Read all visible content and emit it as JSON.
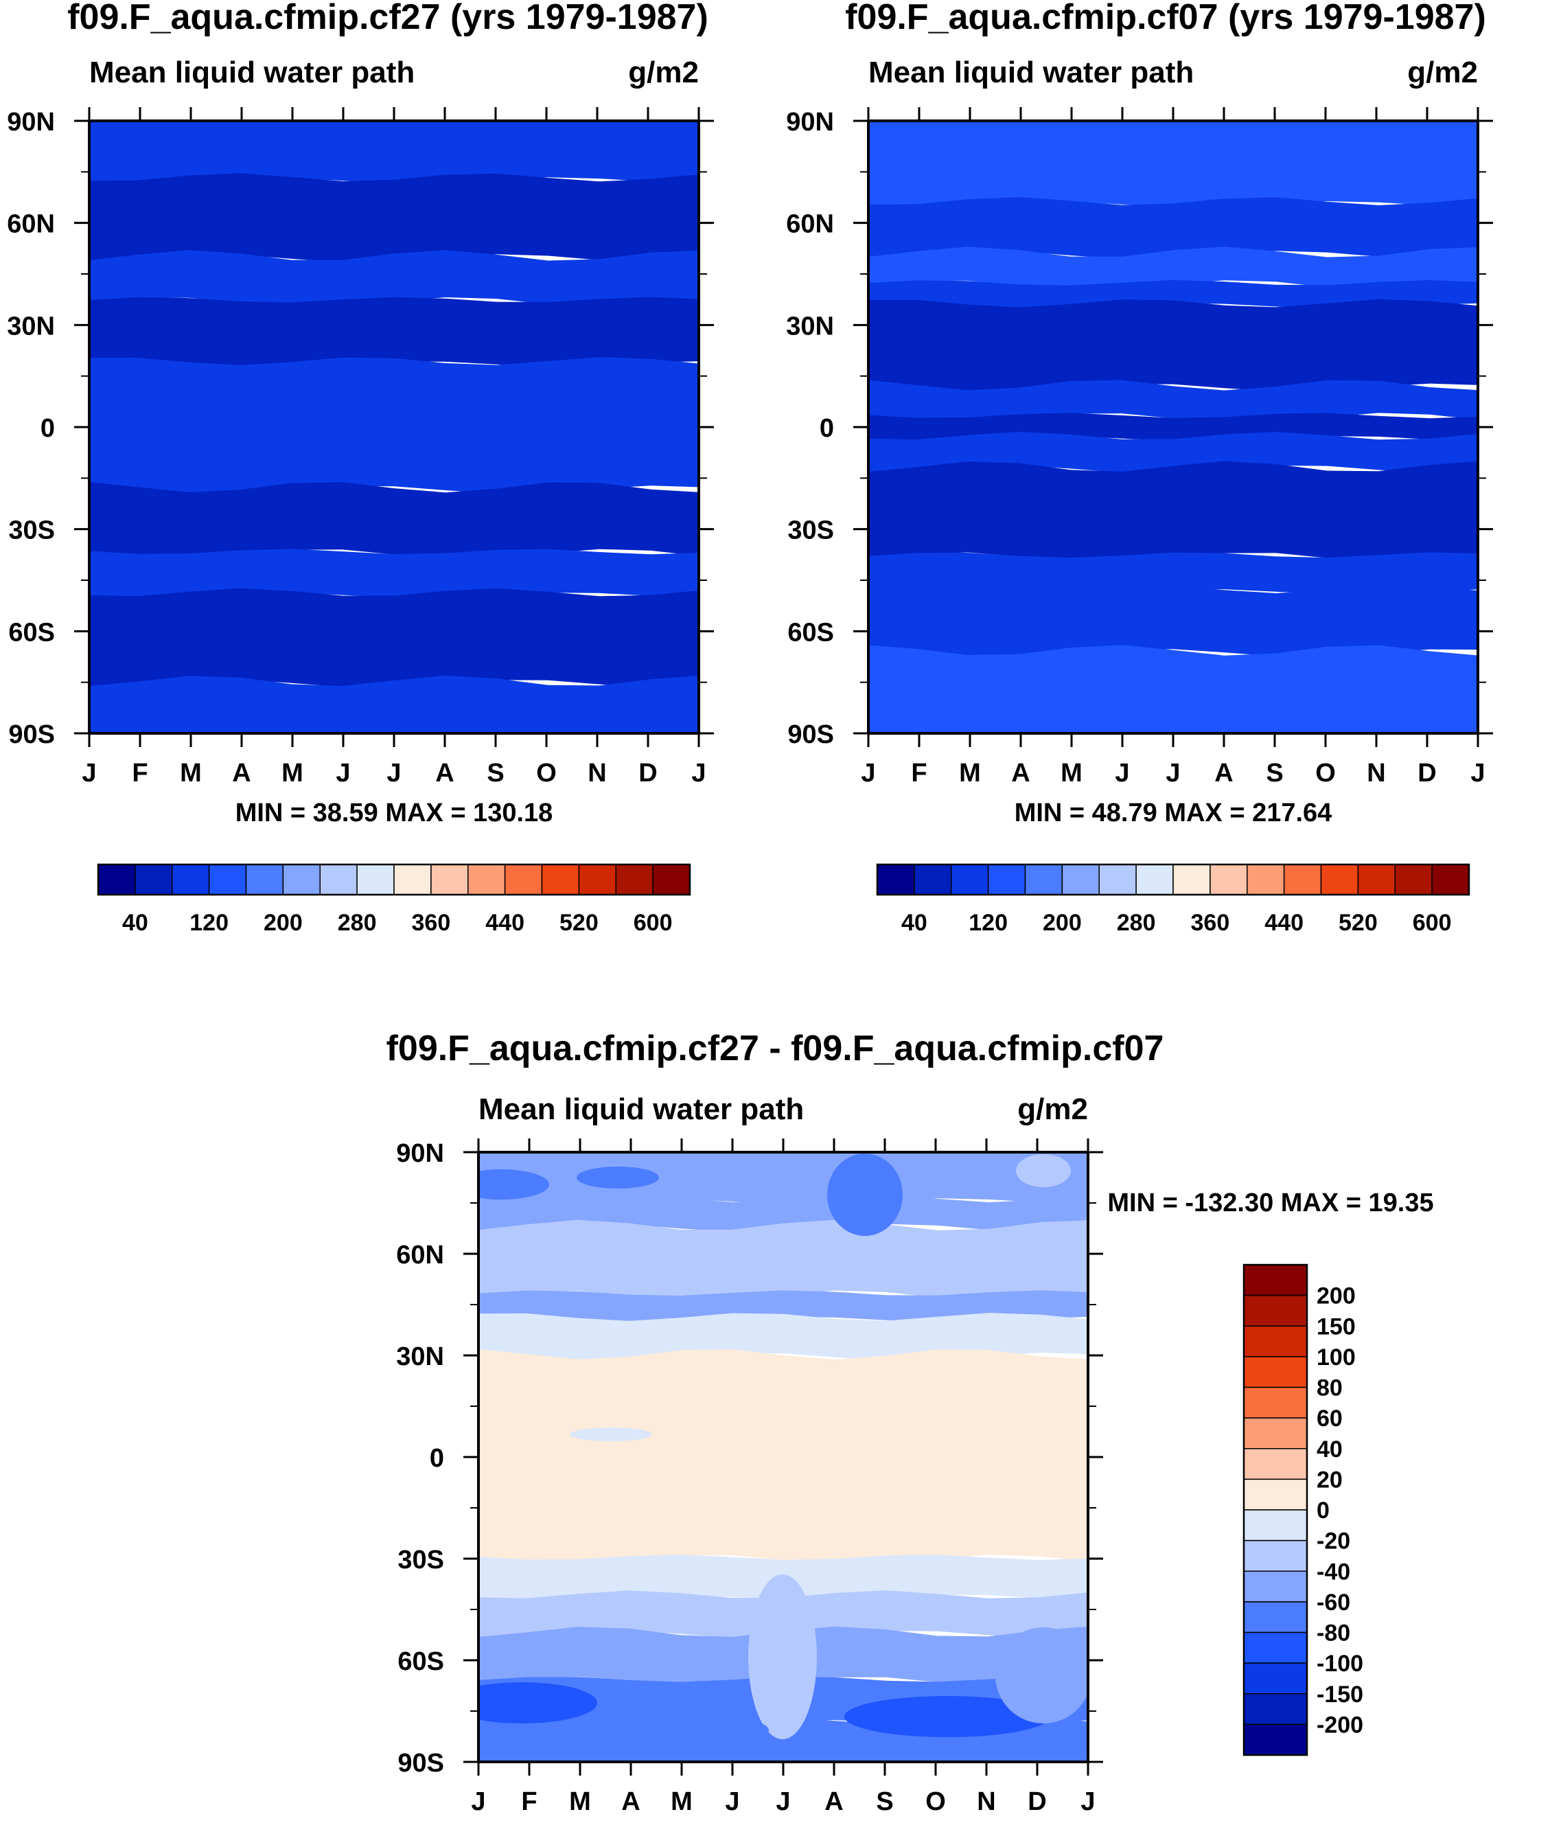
{
  "chart_data": [
    {
      "type": "heatmap",
      "title": "f09.F_aqua.cfmip.cf27 (yrs 1979-1987)",
      "subtitle_left": "Mean liquid water path",
      "subtitle_right": "g/m2",
      "x_tick_labels": [
        "J",
        "F",
        "M",
        "A",
        "M",
        "J",
        "J",
        "A",
        "S",
        "O",
        "N",
        "D",
        "J"
      ],
      "y_tick_labels": [
        "90N",
        "60N",
        "30N",
        "0",
        "30S",
        "60S",
        "90S"
      ],
      "y_values": [
        90,
        60,
        30,
        0,
        -30,
        -60,
        -90
      ],
      "ylim": [
        -90,
        90
      ],
      "stats_text": "MIN =  38.59 MAX = 130.18",
      "min": 38.59,
      "max": 130.18,
      "bands": [
        {
          "lat_from": 90,
          "lat_to": 73,
          "color": "#0a3be6"
        },
        {
          "lat_from": 73,
          "lat_to": 50,
          "color": "#0322c2"
        },
        {
          "lat_from": 50,
          "lat_to": 37,
          "color": "#0a3be6"
        },
        {
          "lat_from": 37,
          "lat_to": 19,
          "color": "#0322c2"
        },
        {
          "lat_from": 19,
          "lat_to": -18,
          "color": "#0a3be6"
        },
        {
          "lat_from": -18,
          "lat_to": -37,
          "color": "#0322c2"
        },
        {
          "lat_from": -37,
          "lat_to": -49,
          "color": "#0a3be6"
        },
        {
          "lat_from": -49,
          "lat_to": -75,
          "color": "#0322c2"
        },
        {
          "lat_from": -75,
          "lat_to": -90,
          "color": "#0a3be6"
        }
      ],
      "colorbar": {
        "labels": [
          "40",
          "120",
          "200",
          "280",
          "360",
          "440",
          "520",
          "600"
        ],
        "colors": [
          "#00008f",
          "#0020bb",
          "#0a3be6",
          "#1e55ff",
          "#4c7cff",
          "#85a6ff",
          "#b4caff",
          "#dbe8fb",
          "#fdebdb",
          "#fdc6ad",
          "#fb9e77",
          "#fa6f3e",
          "#ef4513",
          "#cf2802",
          "#a81400",
          "#870000"
        ]
      }
    },
    {
      "type": "heatmap",
      "title": "f09.F_aqua.cfmip.cf07 (yrs 1979-1987)",
      "subtitle_left": "Mean liquid water path",
      "subtitle_right": "g/m2",
      "x_tick_labels": [
        "J",
        "F",
        "M",
        "A",
        "M",
        "J",
        "J",
        "A",
        "S",
        "O",
        "N",
        "D",
        "J"
      ],
      "y_tick_labels": [
        "90N",
        "60N",
        "30N",
        "0",
        "30S",
        "60S",
        "90S"
      ],
      "y_values": [
        90,
        60,
        30,
        0,
        -30,
        -60,
        -90
      ],
      "ylim": [
        -90,
        90
      ],
      "stats_text": "MIN =  48.79 MAX = 217.64",
      "min": 48.79,
      "max": 217.64,
      "bands": [
        {
          "lat_from": 90,
          "lat_to": 66,
          "color": "#1e55ff"
        },
        {
          "lat_from": 66,
          "lat_to": 51,
          "color": "#0a3be6"
        },
        {
          "lat_from": 51,
          "lat_to": 42,
          "color": "#1e55ff"
        },
        {
          "lat_from": 42,
          "lat_to": 36,
          "color": "#0a3be6"
        },
        {
          "lat_from": 36,
          "lat_to": 12,
          "color": "#0322c2"
        },
        {
          "lat_from": 12,
          "lat_to": 3,
          "color": "#0a3be6"
        },
        {
          "lat_from": 3,
          "lat_to": -3,
          "color": "#0322c2"
        },
        {
          "lat_from": -3,
          "lat_to": -12,
          "color": "#0a3be6"
        },
        {
          "lat_from": -12,
          "lat_to": -38,
          "color": "#0322c2"
        },
        {
          "lat_from": -38,
          "lat_to": -48,
          "color": "#0a3be6"
        },
        {
          "lat_from": -48,
          "lat_to": -66,
          "color": "#0a3be6"
        },
        {
          "lat_from": -66,
          "lat_to": -90,
          "color": "#1e55ff"
        }
      ],
      "colorbar": {
        "labels": [
          "40",
          "120",
          "200",
          "280",
          "360",
          "440",
          "520",
          "600"
        ],
        "colors": [
          "#00008f",
          "#0020bb",
          "#0a3be6",
          "#1e55ff",
          "#4c7cff",
          "#85a6ff",
          "#b4caff",
          "#dbe8fb",
          "#fdebdb",
          "#fdc6ad",
          "#fb9e77",
          "#fa6f3e",
          "#ef4513",
          "#cf2802",
          "#a81400",
          "#870000"
        ]
      }
    },
    {
      "type": "heatmap",
      "title": "f09.F_aqua.cfmip.cf27 - f09.F_aqua.cfmip.cf07",
      "subtitle_left": "Mean liquid water path",
      "subtitle_right": "g/m2",
      "x_tick_labels": [
        "J",
        "F",
        "M",
        "A",
        "M",
        "J",
        "J",
        "A",
        "S",
        "O",
        "N",
        "D",
        "J"
      ],
      "y_tick_labels": [
        "90N",
        "60N",
        "30N",
        "0",
        "30S",
        "60S",
        "90S"
      ],
      "y_values": [
        90,
        60,
        30,
        0,
        -30,
        -60,
        -90
      ],
      "ylim": [
        -90,
        90
      ],
      "stats_text": "MIN = -132.30 MAX =  19.35",
      "min": -132.3,
      "max": 19.35,
      "bands": [
        {
          "lat_from": 90,
          "lat_to": 76,
          "color": "#85a6ff"
        },
        {
          "lat_from": 76,
          "lat_to": 68,
          "color": "#85a6ff"
        },
        {
          "lat_from": 68,
          "lat_to": 48,
          "color": "#b4caff"
        },
        {
          "lat_from": 48,
          "lat_to": 41,
          "color": "#85a6ff"
        },
        {
          "lat_from": 41,
          "lat_to": 30,
          "color": "#dbe8fb"
        },
        {
          "lat_from": 30,
          "lat_to": -30,
          "color": "#fdebdb"
        },
        {
          "lat_from": -30,
          "lat_to": -41,
          "color": "#dbe8fb"
        },
        {
          "lat_from": -41,
          "lat_to": -52,
          "color": "#b4caff"
        },
        {
          "lat_from": -52,
          "lat_to": -66,
          "color": "#85a6ff"
        },
        {
          "lat_from": -66,
          "lat_to": -78,
          "color": "#4c7cff"
        },
        {
          "lat_from": -78,
          "lat_to": -90,
          "color": "#4c7cff"
        }
      ],
      "colorbar": {
        "labels": [
          "200",
          "150",
          "100",
          "80",
          "60",
          "40",
          "20",
          "0",
          "-20",
          "-40",
          "-60",
          "-80",
          "-100",
          "-150",
          "-200"
        ],
        "colors": [
          "#870000",
          "#a81400",
          "#cf2802",
          "#ef4513",
          "#fa6f3e",
          "#fb9e77",
          "#fdc6ad",
          "#fdebdb",
          "#dbe8fb",
          "#b4caff",
          "#85a6ff",
          "#4c7cff",
          "#1e55ff",
          "#0a3be6",
          "#0020bb",
          "#00008f"
        ]
      }
    }
  ]
}
